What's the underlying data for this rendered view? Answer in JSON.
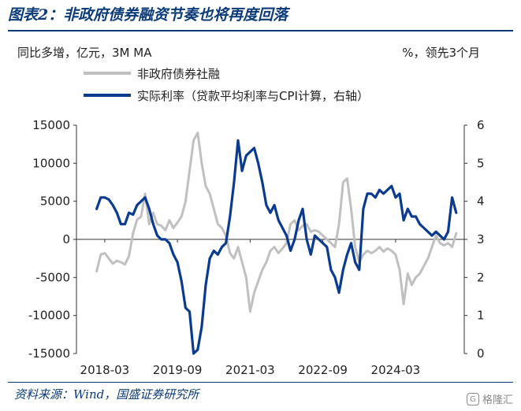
{
  "header": {
    "title": "图表2：非政府债券融资节奏也将再度回落"
  },
  "footer": {
    "source": "资料来源：Wind，国盛证券研究所"
  },
  "watermark": {
    "text": "格隆汇",
    "icon": "glh-logo-icon"
  },
  "colors": {
    "gray_series": "#c0c0c0",
    "blue_series": "#0b3b8f",
    "title": "#0b3b78"
  },
  "chart_data": {
    "type": "line",
    "left_axis_unit": "同比多增，亿元，3M MA",
    "right_axis_unit": "%，领先3个月",
    "x_tick_labels": [
      "2018-03",
      "2019-09",
      "2021-03",
      "2022-09",
      "2024-03"
    ],
    "x_tick_values": [
      "2018-03",
      "2019-09",
      "2021-03",
      "2022-09",
      "2024-03"
    ],
    "x_range": [
      "2017-08",
      "2025-08"
    ],
    "y_left": {
      "range": [
        -15000,
        15000
      ],
      "ticks": [
        15000,
        10000,
        5000,
        0,
        -5000,
        -10000,
        -15000
      ]
    },
    "y_right": {
      "range": [
        0,
        6
      ],
      "ticks": [
        6,
        5,
        4,
        3,
        2,
        1,
        0
      ]
    },
    "legend_position": "top-left",
    "series": [
      {
        "name": "非政府债券社融",
        "axis": "left",
        "color": "#c0c0c0",
        "points": [
          [
            "2018-01",
            -4200
          ],
          [
            "2018-02",
            -2000
          ],
          [
            "2018-03",
            -1800
          ],
          [
            "2018-04",
            -2500
          ],
          [
            "2018-05",
            -3200
          ],
          [
            "2018-06",
            -2800
          ],
          [
            "2018-07",
            -3000
          ],
          [
            "2018-08",
            -3300
          ],
          [
            "2018-09",
            -2200
          ],
          [
            "2018-10",
            800
          ],
          [
            "2018-11",
            2600
          ],
          [
            "2018-12",
            3000
          ],
          [
            "2019-01",
            6000
          ],
          [
            "2019-02",
            2000
          ],
          [
            "2019-03",
            3500
          ],
          [
            "2019-04",
            2000
          ],
          [
            "2019-05",
            1800
          ],
          [
            "2019-06",
            1200
          ],
          [
            "2019-07",
            2500
          ],
          [
            "2019-08",
            1500
          ],
          [
            "2019-09",
            2200
          ],
          [
            "2019-10",
            3000
          ],
          [
            "2019-11",
            5000
          ],
          [
            "2019-12",
            9000
          ],
          [
            "2020-01",
            13000
          ],
          [
            "2020-02",
            14000
          ],
          [
            "2020-03",
            10000
          ],
          [
            "2020-04",
            7000
          ],
          [
            "2020-05",
            6000
          ],
          [
            "2020-06",
            4000
          ],
          [
            "2020-07",
            2000
          ],
          [
            "2020-08",
            1500
          ],
          [
            "2020-09",
            500
          ],
          [
            "2020-10",
            -1800
          ],
          [
            "2020-11",
            -2500
          ],
          [
            "2020-12",
            -1000
          ],
          [
            "2021-01",
            -3000
          ],
          [
            "2021-02",
            -5000
          ],
          [
            "2021-03",
            -9500
          ],
          [
            "2021-04",
            -7000
          ],
          [
            "2021-05",
            -5500
          ],
          [
            "2021-06",
            -4000
          ],
          [
            "2021-07",
            -3000
          ],
          [
            "2021-08",
            -1500
          ],
          [
            "2021-09",
            -1000
          ],
          [
            "2021-10",
            -1800
          ],
          [
            "2021-11",
            -1200
          ],
          [
            "2021-12",
            -500
          ],
          [
            "2022-01",
            2000
          ],
          [
            "2022-02",
            2500
          ],
          [
            "2022-03",
            1200
          ],
          [
            "2022-04",
            1800
          ],
          [
            "2022-05",
            2000
          ],
          [
            "2022-06",
            1000
          ],
          [
            "2022-07",
            1200
          ],
          [
            "2022-08",
            1000
          ],
          [
            "2022-09",
            500
          ],
          [
            "2022-10",
            0
          ],
          [
            "2022-11",
            -500
          ],
          [
            "2022-12",
            -1000
          ],
          [
            "2023-01",
            2000
          ],
          [
            "2023-02",
            7500
          ],
          [
            "2023-03",
            8000
          ],
          [
            "2023-04",
            4000
          ],
          [
            "2023-05",
            -1000
          ],
          [
            "2023-06",
            -3000
          ],
          [
            "2023-07",
            -2000
          ],
          [
            "2023-08",
            -1500
          ],
          [
            "2023-09",
            -1800
          ],
          [
            "2023-10",
            -1500
          ],
          [
            "2023-11",
            -1000
          ],
          [
            "2023-12",
            -1600
          ],
          [
            "2024-01",
            -1200
          ],
          [
            "2024-02",
            -1500
          ],
          [
            "2024-03",
            -2000
          ],
          [
            "2024-04",
            -4000
          ],
          [
            "2024-05",
            -8500
          ],
          [
            "2024-06",
            -4500
          ],
          [
            "2024-07",
            -6000
          ],
          [
            "2024-08",
            -5000
          ],
          [
            "2024-09",
            -4500
          ],
          [
            "2024-10",
            -3500
          ],
          [
            "2024-11",
            -2500
          ],
          [
            "2024-12",
            -1000
          ],
          [
            "2025-01",
            500
          ],
          [
            "2025-02",
            -500
          ],
          [
            "2025-03",
            -800
          ],
          [
            "2025-04",
            -500
          ],
          [
            "2025-05",
            -1000
          ],
          [
            "2025-06",
            800
          ]
        ]
      },
      {
        "name": "实际利率（贷款平均利率与CPI计算，右轴）",
        "axis": "right",
        "color": "#0b3b8f",
        "points": [
          [
            "2018-01",
            3.8
          ],
          [
            "2018-02",
            4.1
          ],
          [
            "2018-03",
            4.1
          ],
          [
            "2018-04",
            4.05
          ],
          [
            "2018-05",
            3.9
          ],
          [
            "2018-06",
            3.7
          ],
          [
            "2018-07",
            3.4
          ],
          [
            "2018-08",
            3.4
          ],
          [
            "2018-09",
            3.7
          ],
          [
            "2018-10",
            3.65
          ],
          [
            "2018-11",
            3.9
          ],
          [
            "2018-12",
            4.0
          ],
          [
            "2019-01",
            4.1
          ],
          [
            "2019-02",
            3.8
          ],
          [
            "2019-03",
            3.4
          ],
          [
            "2019-04",
            3.1
          ],
          [
            "2019-05",
            3.0
          ],
          [
            "2019-06",
            3.0
          ],
          [
            "2019-07",
            2.9
          ],
          [
            "2019-08",
            2.6
          ],
          [
            "2019-09",
            2.4
          ],
          [
            "2019-10",
            1.9
          ],
          [
            "2019-11",
            1.2
          ],
          [
            "2019-12",
            1.1
          ],
          [
            "2020-01",
            0.0
          ],
          [
            "2020-02",
            0.1
          ],
          [
            "2020-03",
            0.7
          ],
          [
            "2020-04",
            1.8
          ],
          [
            "2020-05",
            2.5
          ],
          [
            "2020-06",
            2.7
          ],
          [
            "2020-07",
            2.6
          ],
          [
            "2020-08",
            2.8
          ],
          [
            "2020-09",
            2.9
          ],
          [
            "2020-10",
            3.6
          ],
          [
            "2020-11",
            4.5
          ],
          [
            "2020-12",
            5.6
          ],
          [
            "2021-01",
            4.8
          ],
          [
            "2021-02",
            5.2
          ],
          [
            "2021-03",
            5.3
          ],
          [
            "2021-04",
            5.4
          ],
          [
            "2021-05",
            5.0
          ],
          [
            "2021-06",
            4.5
          ],
          [
            "2021-07",
            3.9
          ],
          [
            "2021-08",
            3.7
          ],
          [
            "2021-09",
            3.9
          ],
          [
            "2021-10",
            3.5
          ],
          [
            "2021-11",
            3.3
          ],
          [
            "2021-12",
            3.1
          ],
          [
            "2022-01",
            2.7
          ],
          [
            "2022-02",
            3.0
          ],
          [
            "2022-03",
            3.5
          ],
          [
            "2022-04",
            3.8
          ],
          [
            "2022-05",
            3.0
          ],
          [
            "2022-06",
            2.6
          ],
          [
            "2022-07",
            3.1
          ],
          [
            "2022-08",
            3.0
          ],
          [
            "2022-09",
            2.9
          ],
          [
            "2022-10",
            2.8
          ],
          [
            "2022-11",
            2.2
          ],
          [
            "2022-12",
            2.0
          ],
          [
            "2023-01",
            1.6
          ],
          [
            "2023-02",
            2.2
          ],
          [
            "2023-03",
            2.6
          ],
          [
            "2023-04",
            2.9
          ],
          [
            "2023-05",
            2.4
          ],
          [
            "2023-06",
            2.2
          ],
          [
            "2023-07",
            3.8
          ],
          [
            "2023-08",
            4.2
          ],
          [
            "2023-09",
            4.2
          ],
          [
            "2023-10",
            4.1
          ],
          [
            "2023-11",
            4.3
          ],
          [
            "2023-12",
            4.2
          ],
          [
            "2024-01",
            4.3
          ],
          [
            "2024-02",
            4.4
          ],
          [
            "2024-03",
            4.1
          ],
          [
            "2024-04",
            4.2
          ],
          [
            "2024-05",
            3.5
          ],
          [
            "2024-06",
            3.8
          ],
          [
            "2024-07",
            3.6
          ],
          [
            "2024-08",
            3.6
          ],
          [
            "2024-09",
            3.4
          ],
          [
            "2024-10",
            3.3
          ],
          [
            "2024-11",
            3.2
          ],
          [
            "2024-12",
            3.1
          ],
          [
            "2025-01",
            3.2
          ],
          [
            "2025-02",
            3.1
          ],
          [
            "2025-03",
            3.0
          ],
          [
            "2025-04",
            3.2
          ],
          [
            "2025-05",
            4.1
          ],
          [
            "2025-06",
            3.7
          ]
        ]
      }
    ]
  }
}
